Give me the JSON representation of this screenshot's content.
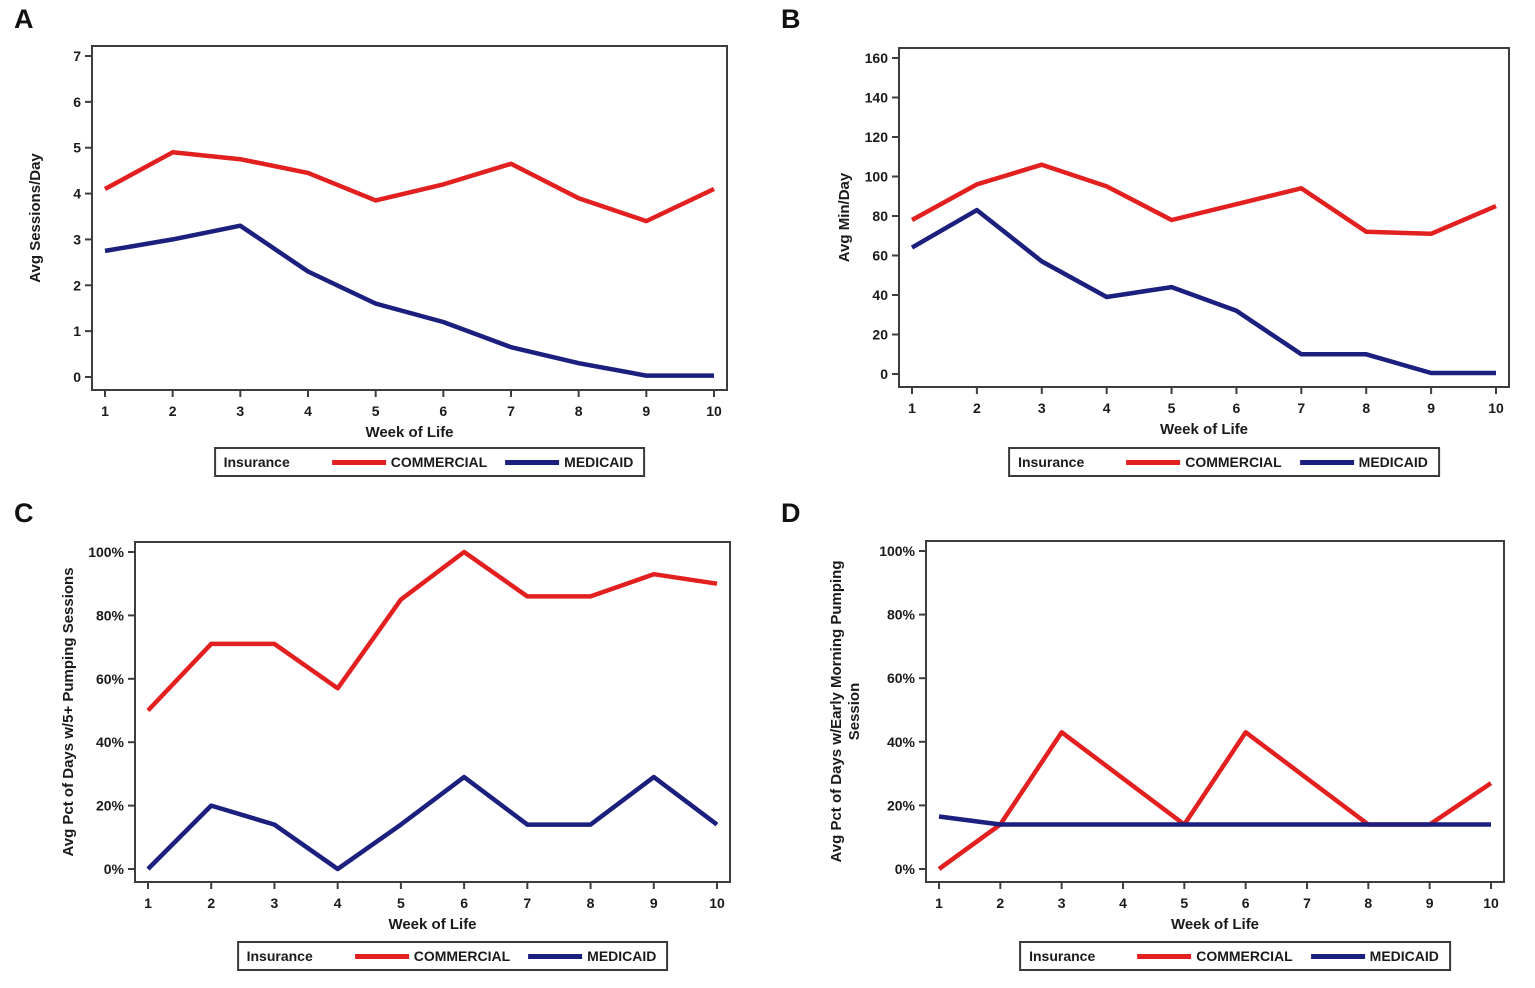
{
  "figure": {
    "legend_title": "Insurance",
    "xlabel": "Week of Life",
    "colors": {
      "commercial": "#e32020",
      "medicaid": "#1b1f7e",
      "axis": "#3d3d3d",
      "text": "#1a1a1a"
    }
  },
  "chart_data": [
    {
      "type": "line",
      "panel_label": "A",
      "title": "",
      "xlabel": "Week of Life",
      "ylabel": "Avg Sessions/Day",
      "ylabel_lines": [
        "Avg Sessions/Day"
      ],
      "x": [
        1,
        2,
        3,
        4,
        5,
        6,
        7,
        8,
        9,
        10
      ],
      "ylim": [
        0,
        7
      ],
      "ytick_step": 1,
      "ytick_suffix": "",
      "grid": false,
      "legend_position": "bottom",
      "legend_title": "Insurance",
      "series": [
        {
          "name": "COMMERCIAL",
          "color": "#e32020",
          "values": [
            4.1,
            4.9,
            4.75,
            4.45,
            3.85,
            4.2,
            4.65,
            3.9,
            3.4,
            4.1
          ]
        },
        {
          "name": "MEDICAID",
          "color": "#1b1f7e",
          "values": [
            2.75,
            3.0,
            3.3,
            2.3,
            1.6,
            1.2,
            0.65,
            0.3,
            0.03,
            0.03
          ]
        }
      ]
    },
    {
      "type": "line",
      "panel_label": "B",
      "title": "",
      "xlabel": "Week of Life",
      "ylabel": "Avg Min/Day",
      "ylabel_lines": [
        "Avg Min/Day"
      ],
      "x": [
        1,
        2,
        3,
        4,
        5,
        6,
        7,
        8,
        9,
        10
      ],
      "ylim": [
        0,
        160
      ],
      "ytick_step": 20,
      "ytick_suffix": "",
      "grid": false,
      "legend_position": "bottom",
      "legend_title": "Insurance",
      "series": [
        {
          "name": "COMMERCIAL",
          "color": "#e32020",
          "values": [
            78,
            96,
            106,
            95,
            78,
            86,
            94,
            72,
            71,
            85
          ]
        },
        {
          "name": "MEDICAID",
          "color": "#1b1f7e",
          "values": [
            64,
            83,
            57,
            39,
            44,
            32,
            10,
            10,
            0.5,
            0.5
          ]
        }
      ]
    },
    {
      "type": "line",
      "panel_label": "C",
      "title": "",
      "xlabel": "Week of Life",
      "ylabel": "Avg Pct of Days w/5+ Pumping Sessions",
      "ylabel_lines": [
        "Avg Pct of Days w/5+ Pumping Sessions"
      ],
      "x": [
        1,
        2,
        3,
        4,
        5,
        6,
        7,
        8,
        9,
        10
      ],
      "ylim": [
        0,
        100
      ],
      "ytick_step": 20,
      "ytick_suffix": "%",
      "grid": false,
      "legend_position": "bottom",
      "legend_title": "Insurance",
      "series": [
        {
          "name": "COMMERCIAL",
          "color": "#e32020",
          "values": [
            50,
            71,
            71,
            57,
            85,
            100,
            86,
            86,
            93,
            90
          ]
        },
        {
          "name": "MEDICAID",
          "color": "#1b1f7e",
          "values": [
            0,
            20,
            14,
            0,
            14,
            29,
            14,
            14,
            29,
            14
          ]
        }
      ]
    },
    {
      "type": "line",
      "panel_label": "D",
      "title": "",
      "xlabel": "Week of Life",
      "ylabel": "Avg Pct of Days w/Early Morning Pumping Session",
      "ylabel_lines": [
        "Avg Pct of Days w/Early Morning Pumping",
        "Session"
      ],
      "x": [
        1,
        2,
        3,
        4,
        5,
        6,
        7,
        8,
        9,
        10
      ],
      "ylim": [
        0,
        100
      ],
      "ytick_step": 20,
      "ytick_suffix": "%",
      "grid": false,
      "legend_position": "bottom",
      "legend_title": "Insurance",
      "series": [
        {
          "name": "COMMERCIAL",
          "color": "#e32020",
          "values": [
            0,
            14,
            43,
            28.5,
            14,
            43,
            28.5,
            14,
            14,
            27
          ]
        },
        {
          "name": "MEDICAID",
          "color": "#1b1f7e",
          "values": [
            16.5,
            14,
            14,
            14,
            14,
            14,
            14,
            14,
            14,
            14
          ]
        }
      ]
    }
  ]
}
